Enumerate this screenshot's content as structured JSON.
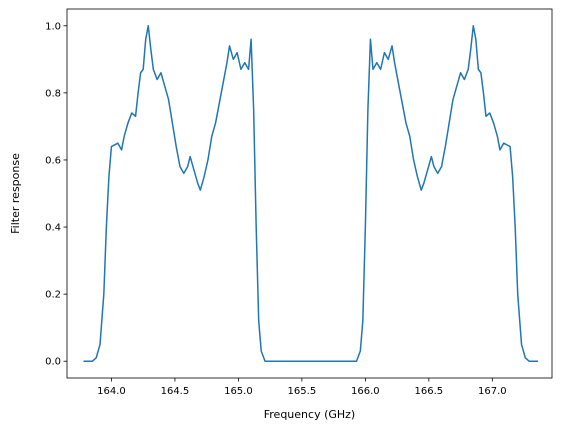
{
  "chart_data": {
    "type": "line",
    "xlabel": "Frequency (GHz)",
    "ylabel": "Filter response",
    "xlim": [
      163.65,
      167.47
    ],
    "ylim": [
      -0.05,
      1.05
    ],
    "xticks": [
      {
        "value": 164,
        "label": "164.0"
      },
      164.5,
      {
        "value": 165,
        "label": "165.0"
      },
      165.5,
      {
        "value": 166,
        "label": "166.0"
      },
      166.5,
      {
        "value": 167,
        "label": "167.0"
      }
    ],
    "yticks": [
      {
        "value": 0,
        "label": "0.0"
      },
      0.2,
      0.4,
      0.6,
      0.8,
      {
        "value": 1,
        "label": "1.0"
      }
    ],
    "series": [
      {
        "color": "#1f77b4",
        "x": [
          163.78,
          163.85,
          163.88,
          163.91,
          163.94,
          163.96,
          163.98,
          164.0,
          164.05,
          164.08,
          164.1,
          164.13,
          164.16,
          164.19,
          164.21,
          164.23,
          164.25,
          164.27,
          164.29,
          164.31,
          164.33,
          164.36,
          164.39,
          164.42,
          164.45,
          164.48,
          164.51,
          164.54,
          164.57,
          164.6,
          164.62,
          164.65,
          164.68,
          164.7,
          164.73,
          164.76,
          164.79,
          164.82,
          164.85,
          164.88,
          164.91,
          164.93,
          164.96,
          164.99,
          165.02,
          165.05,
          165.08,
          165.1,
          165.12,
          165.14,
          165.16,
          165.18,
          165.21,
          165.4,
          165.74,
          165.93,
          165.96,
          165.98,
          166.0,
          166.02,
          166.04,
          166.06,
          166.09,
          166.12,
          166.15,
          166.18,
          166.21,
          166.23,
          166.26,
          166.29,
          166.32,
          166.35,
          166.38,
          166.41,
          166.44,
          166.46,
          166.49,
          166.52,
          166.54,
          166.57,
          166.6,
          166.63,
          166.66,
          166.69,
          166.72,
          166.75,
          166.78,
          166.81,
          166.83,
          166.85,
          166.87,
          166.89,
          166.91,
          166.93,
          166.95,
          166.98,
          167.01,
          167.04,
          167.06,
          167.09,
          167.14,
          167.16,
          167.18,
          167.2,
          167.23,
          167.26,
          167.29,
          167.36
        ],
        "values": [
          0,
          0,
          0.01,
          0.05,
          0.2,
          0.4,
          0.55,
          0.64,
          0.65,
          0.63,
          0.67,
          0.71,
          0.74,
          0.73,
          0.8,
          0.86,
          0.87,
          0.96,
          1.0,
          0.93,
          0.87,
          0.84,
          0.86,
          0.82,
          0.78,
          0.71,
          0.64,
          0.58,
          0.56,
          0.58,
          0.61,
          0.57,
          0.53,
          0.51,
          0.55,
          0.6,
          0.67,
          0.71,
          0.77,
          0.83,
          0.89,
          0.94,
          0.9,
          0.92,
          0.87,
          0.89,
          0.87,
          0.96,
          0.75,
          0.4,
          0.12,
          0.03,
          0,
          0,
          0,
          0,
          0.03,
          0.12,
          0.4,
          0.75,
          0.96,
          0.87,
          0.89,
          0.87,
          0.92,
          0.9,
          0.94,
          0.89,
          0.83,
          0.77,
          0.71,
          0.67,
          0.6,
          0.55,
          0.51,
          0.53,
          0.57,
          0.61,
          0.58,
          0.56,
          0.58,
          0.64,
          0.71,
          0.78,
          0.82,
          0.86,
          0.84,
          0.87,
          0.93,
          1.0,
          0.96,
          0.87,
          0.86,
          0.8,
          0.73,
          0.74,
          0.71,
          0.67,
          0.63,
          0.65,
          0.64,
          0.55,
          0.4,
          0.2,
          0.05,
          0.01,
          0,
          0
        ]
      }
    ]
  }
}
